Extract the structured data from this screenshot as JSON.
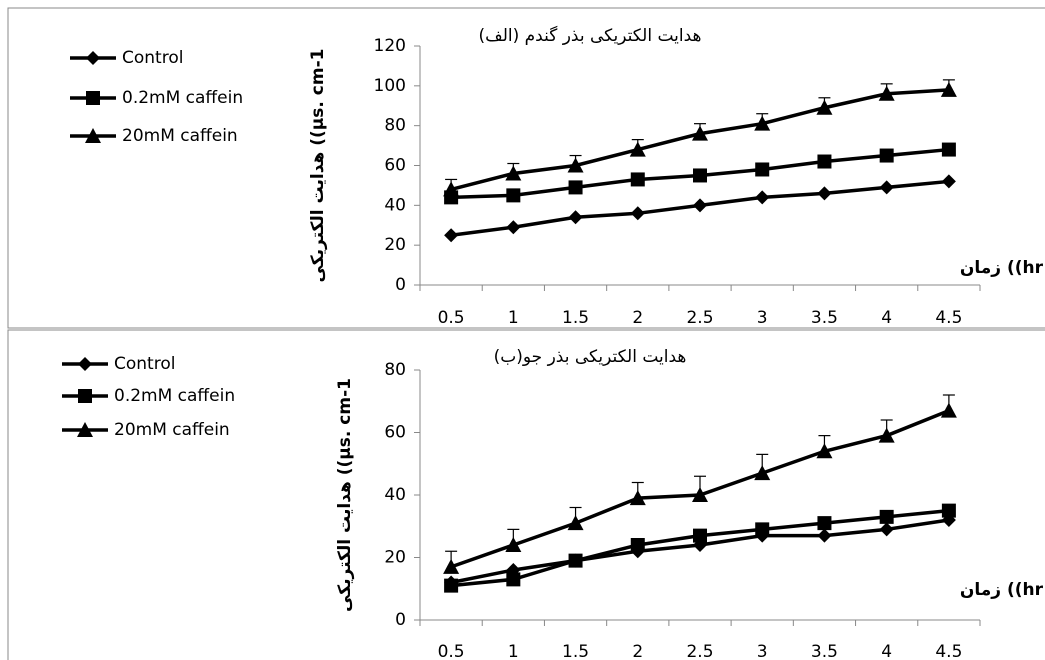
{
  "chart_data": [
    {
      "type": "line",
      "title": "هدایت الکتریکی بذر گندم (الف)",
      "y_label": "هدایت الکتریکی ((µs. cm-1",
      "x_label": "زمان ((hr",
      "categories": [
        "0.5",
        "1",
        "1.5",
        "2",
        "2.5",
        "3",
        "3.5",
        "4",
        "4.5"
      ],
      "series": [
        {
          "name": "Control",
          "color": "#000000",
          "marker": "diamond",
          "values": [
            25,
            29,
            34,
            36,
            40,
            44,
            46,
            49,
            52
          ]
        },
        {
          "name": "0.2mM caffein",
          "color": "#000000",
          "marker": "square",
          "values": [
            44,
            45,
            49,
            53,
            55,
            58,
            62,
            65,
            68
          ]
        },
        {
          "name": "20mM caffein",
          "color": "#000000",
          "marker": "triangle",
          "values": [
            48,
            56,
            60,
            68,
            76,
            81,
            89,
            96,
            98
          ],
          "errors": [
            5,
            5,
            5,
            5,
            5,
            5,
            5,
            5,
            5
          ]
        }
      ],
      "ylim": [
        0,
        120
      ],
      "yticks": [
        0,
        20,
        40,
        60,
        80,
        100,
        120
      ]
    },
    {
      "type": "line",
      "title": "هدایت الکتریکی بذر جو(ب)",
      "y_label": "هدایت الکتریکی ((µs. cm-1",
      "x_label": "زمان ((hr",
      "categories": [
        "0.5",
        "1",
        "1.5",
        "2",
        "2.5",
        "3",
        "3.5",
        "4",
        "4.5"
      ],
      "series": [
        {
          "name": "Control",
          "color": "#000000",
          "marker": "diamond",
          "values": [
            12,
            16,
            19,
            22,
            24,
            27,
            27,
            29,
            32
          ]
        },
        {
          "name": "0.2mM caffein",
          "color": "#000000",
          "marker": "square",
          "values": [
            11,
            13,
            19,
            24,
            27,
            29,
            31,
            33,
            35
          ]
        },
        {
          "name": "20mM caffein",
          "color": "#000000",
          "marker": "triangle",
          "values": [
            17,
            24,
            31,
            39,
            40,
            47,
            54,
            59,
            67
          ],
          "errors": [
            5,
            5,
            5,
            5,
            6,
            6,
            5,
            5,
            5
          ]
        }
      ],
      "ylim": [
        0,
        80
      ],
      "yticks": [
        0,
        20,
        40,
        60,
        80
      ]
    }
  ]
}
